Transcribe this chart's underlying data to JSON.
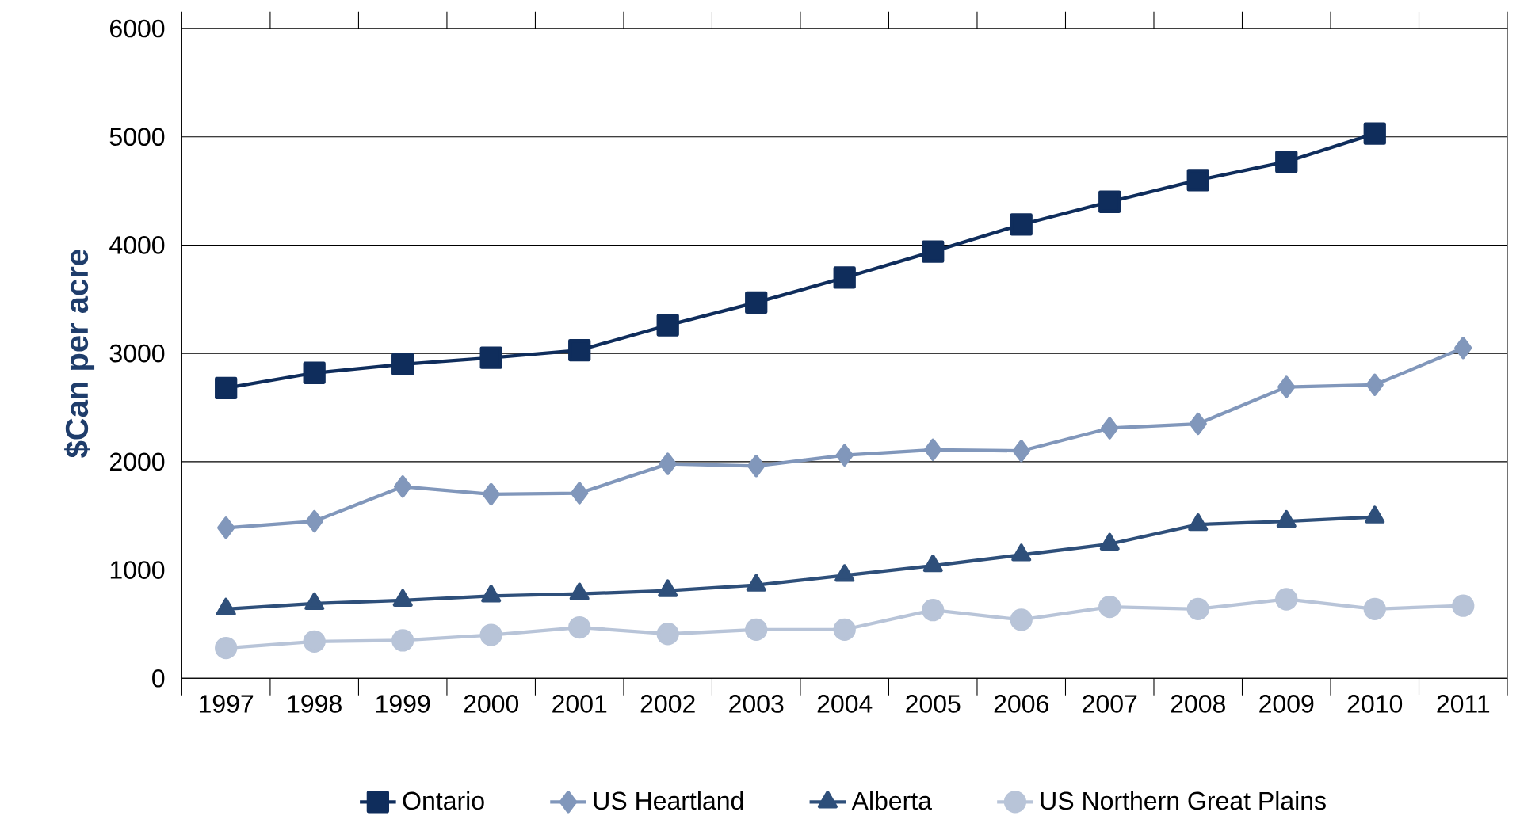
{
  "chart_data": {
    "type": "line",
    "ylabel": "$Can per acre",
    "categories": [
      "1997",
      "1998",
      "1999",
      "2000",
      "2001",
      "2002",
      "2003",
      "2004",
      "2005",
      "2006",
      "2007",
      "2008",
      "2009",
      "2010",
      "2011"
    ],
    "ylim": [
      0,
      6000
    ],
    "yticks": [
      0,
      1000,
      2000,
      3000,
      4000,
      5000,
      6000
    ],
    "grid": "y",
    "legend": "bottom",
    "line_style": "solid",
    "series": [
      {
        "name": "Ontario",
        "color": "#0f2d5c",
        "marker": "square",
        "values": [
          2680,
          2820,
          2900,
          2960,
          3030,
          3260,
          3470,
          3700,
          3940,
          4190,
          4400,
          4600,
          4770,
          5030,
          null
        ]
      },
      {
        "name": "US Heartland",
        "color": "#8197bb",
        "marker": "diamond",
        "values": [
          1390,
          1450,
          1770,
          1700,
          1710,
          1980,
          1960,
          2060,
          2110,
          2100,
          2310,
          2350,
          2690,
          2710,
          3050
        ]
      },
      {
        "name": "Alberta",
        "color": "#2e4f7a",
        "marker": "triangle",
        "values": [
          640,
          690,
          720,
          760,
          780,
          810,
          860,
          950,
          1040,
          1140,
          1240,
          1420,
          1450,
          1490,
          null
        ]
      },
      {
        "name": "US Northern Great Plains",
        "color": "#b8c4d8",
        "marker": "circle",
        "values": [
          280,
          340,
          350,
          400,
          470,
          410,
          450,
          450,
          630,
          540,
          660,
          640,
          730,
          640,
          670
        ]
      }
    ]
  }
}
